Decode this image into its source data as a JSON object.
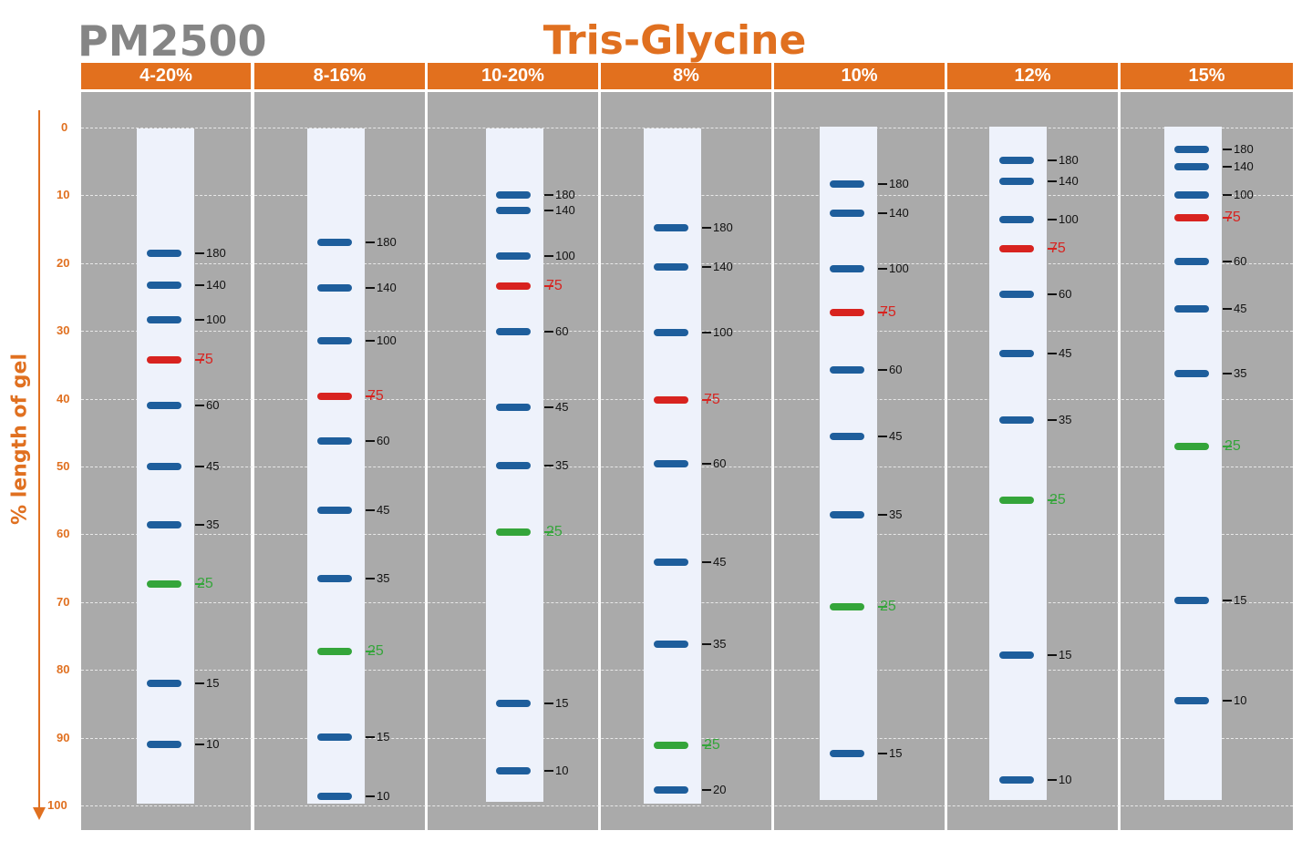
{
  "title": {
    "product": "PM2500",
    "gel_type": "Tris-Glycine"
  },
  "y_axis": {
    "label": "% length of gel",
    "ticks": [
      "0",
      "10",
      "20",
      "30",
      "40",
      "50",
      "60",
      "70",
      "80",
      "90",
      "100"
    ],
    "range": [
      0,
      100
    ]
  },
  "colors": {
    "accent": "#e2701e",
    "panel": "#aaaaaa",
    "lane": "#eef2fb",
    "blue_band": "#1e5e9c",
    "red_band": "#d8231f",
    "green_band": "#34a53a"
  },
  "chart_data": {
    "type": "gel-migration",
    "y_unit": "% length of gel",
    "lanes": [
      {
        "gel": "4-20%",
        "bands": [
          {
            "mw": "180",
            "pos": 18.5,
            "color": "blue"
          },
          {
            "mw": "140",
            "pos": 23.3,
            "color": "blue"
          },
          {
            "mw": "100",
            "pos": 28.3,
            "color": "blue"
          },
          {
            "mw": "75",
            "pos": 34.3,
            "color": "red"
          },
          {
            "mw": "60",
            "pos": 41,
            "color": "blue"
          },
          {
            "mw": "45",
            "pos": 50,
            "color": "blue"
          },
          {
            "mw": "35",
            "pos": 58.6,
            "color": "blue"
          },
          {
            "mw": "25",
            "pos": 67.3,
            "color": "green"
          },
          {
            "mw": "15",
            "pos": 82,
            "color": "blue"
          },
          {
            "mw": "10",
            "pos": 91,
            "color": "blue"
          }
        ]
      },
      {
        "gel": "8-16%",
        "bands": [
          {
            "mw": "180",
            "pos": 17,
            "color": "blue"
          },
          {
            "mw": "140",
            "pos": 23.6,
            "color": "blue"
          },
          {
            "mw": "100",
            "pos": 31.4,
            "color": "blue"
          },
          {
            "mw": "75",
            "pos": 39.7,
            "color": "red"
          },
          {
            "mw": "60",
            "pos": 46.2,
            "color": "blue"
          },
          {
            "mw": "45",
            "pos": 56.5,
            "color": "blue"
          },
          {
            "mw": "35",
            "pos": 66.5,
            "color": "blue"
          },
          {
            "mw": "25",
            "pos": 77.3,
            "color": "green"
          },
          {
            "mw": "15",
            "pos": 89.9,
            "color": "blue"
          },
          {
            "mw": "10",
            "pos": 98.6,
            "color": "blue"
          }
        ]
      },
      {
        "gel": "10-20%",
        "bands": [
          {
            "mw": "180",
            "pos": 10,
            "color": "blue"
          },
          {
            "mw": "140",
            "pos": 12.2,
            "color": "blue"
          },
          {
            "mw": "100",
            "pos": 18.9,
            "color": "blue"
          },
          {
            "mw": "75",
            "pos": 23.4,
            "color": "red"
          },
          {
            "mw": "60",
            "pos": 30.1,
            "color": "blue"
          },
          {
            "mw": "45",
            "pos": 41.3,
            "color": "blue"
          },
          {
            "mw": "35",
            "pos": 49.9,
            "color": "blue"
          },
          {
            "mw": "25",
            "pos": 59.7,
            "color": "green"
          },
          {
            "mw": "15",
            "pos": 84.9,
            "color": "blue"
          },
          {
            "mw": "10",
            "pos": 94.9,
            "color": "blue"
          }
        ]
      },
      {
        "gel": "8%",
        "bands": [
          {
            "mw": "180",
            "pos": 14.8,
            "color": "blue"
          },
          {
            "mw": "140",
            "pos": 20.6,
            "color": "blue"
          },
          {
            "mw": "100",
            "pos": 30.3,
            "color": "blue"
          },
          {
            "mw": "75",
            "pos": 40.2,
            "color": "red"
          },
          {
            "mw": "60",
            "pos": 49.6,
            "color": "blue"
          },
          {
            "mw": "45",
            "pos": 64.1,
            "color": "blue"
          },
          {
            "mw": "35",
            "pos": 76.2,
            "color": "blue"
          },
          {
            "mw": "25",
            "pos": 91.1,
            "color": "green"
          },
          {
            "mw": "20",
            "pos": 97.7,
            "color": "blue"
          }
        ]
      },
      {
        "gel": "10%",
        "bands": [
          {
            "mw": "180",
            "pos": 8.3,
            "color": "blue"
          },
          {
            "mw": "140",
            "pos": 12.6,
            "color": "blue"
          },
          {
            "mw": "100",
            "pos": 20.9,
            "color": "blue"
          },
          {
            "mw": "75",
            "pos": 27.3,
            "color": "red"
          },
          {
            "mw": "60",
            "pos": 35.8,
            "color": "blue"
          },
          {
            "mw": "45",
            "pos": 45.5,
            "color": "blue"
          },
          {
            "mw": "35",
            "pos": 57.1,
            "color": "blue"
          },
          {
            "mw": "25",
            "pos": 70.7,
            "color": "green"
          },
          {
            "mw": "15",
            "pos": 92.3,
            "color": "blue"
          }
        ]
      },
      {
        "gel": "12%",
        "bands": [
          {
            "mw": "180",
            "pos": 4.9,
            "color": "blue"
          },
          {
            "mw": "140",
            "pos": 7.9,
            "color": "blue"
          },
          {
            "mw": "100",
            "pos": 13.6,
            "color": "blue"
          },
          {
            "mw": "75",
            "pos": 17.9,
            "color": "red"
          },
          {
            "mw": "60",
            "pos": 24.6,
            "color": "blue"
          },
          {
            "mw": "45",
            "pos": 33.3,
            "color": "blue"
          },
          {
            "mw": "35",
            "pos": 43.2,
            "color": "blue"
          },
          {
            "mw": "25",
            "pos": 55,
            "color": "green"
          },
          {
            "mw": "15",
            "pos": 77.8,
            "color": "blue"
          },
          {
            "mw": "10",
            "pos": 96.2,
            "color": "blue"
          }
        ]
      },
      {
        "gel": "15%",
        "bands": [
          {
            "mw": "180",
            "pos": 3.2,
            "color": "blue"
          },
          {
            "mw": "140",
            "pos": 5.8,
            "color": "blue"
          },
          {
            "mw": "100",
            "pos": 9.9,
            "color": "blue"
          },
          {
            "mw": "75",
            "pos": 13.3,
            "color": "red"
          },
          {
            "mw": "60",
            "pos": 19.8,
            "color": "blue"
          },
          {
            "mw": "45",
            "pos": 26.8,
            "color": "blue"
          },
          {
            "mw": "35",
            "pos": 36.3,
            "color": "blue"
          },
          {
            "mw": "25",
            "pos": 47.1,
            "color": "green"
          },
          {
            "mw": "15",
            "pos": 69.7,
            "color": "blue"
          },
          {
            "mw": "10",
            "pos": 84.6,
            "color": "blue"
          }
        ]
      }
    ]
  }
}
